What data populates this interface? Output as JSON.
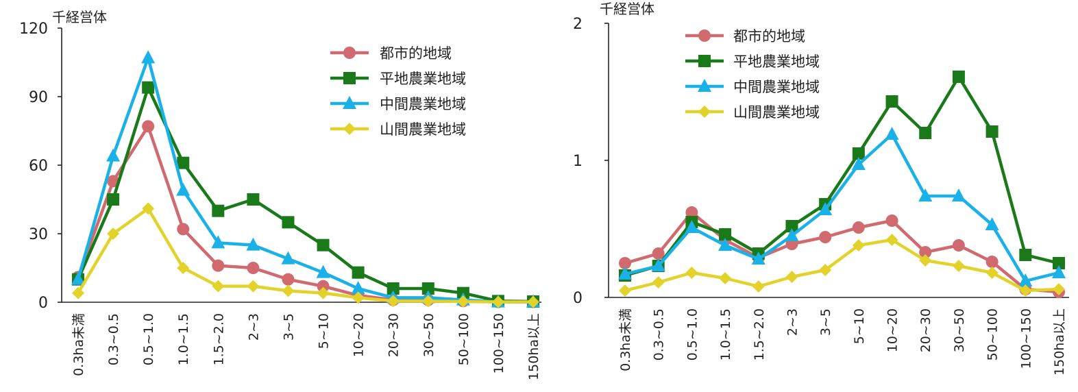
{
  "chart_data": [
    {
      "type": "line",
      "title": "",
      "unit_label": "千経営体",
      "xlabel": "",
      "ylabel": "",
      "ylim": [
        0,
        120
      ],
      "yticks": [
        0,
        30,
        60,
        90,
        120
      ],
      "legend_position": "top-right",
      "categories": [
        "0.3ha未満",
        "0.3~0.5",
        "0.5~1.0",
        "1.0~1.5",
        "1.5~2.0",
        "2~3",
        "3~5",
        "5~10",
        "10~20",
        "20~30",
        "30~50",
        "50~100",
        "100~150",
        "150ha以上"
      ],
      "series": [
        {
          "name": "都市的地域",
          "color": "#d06a6e",
          "marker": "circle",
          "values": [
            11,
            53,
            77,
            32,
            16,
            15,
            10,
            7,
            3,
            1,
            1,
            0.5,
            0.1,
            0.1
          ]
        },
        {
          "name": "平地農業地域",
          "color": "#1a7a1a",
          "marker": "square",
          "values": [
            10,
            45,
            94,
            61,
            40,
            45,
            35,
            25,
            13,
            6,
            6,
            4,
            0.5,
            0.3
          ]
        },
        {
          "name": "中間農業地域",
          "color": "#1ab0e8",
          "marker": "triangle",
          "values": [
            10,
            64,
            107,
            49,
            26,
            25,
            19,
            13,
            6,
            2,
            2,
            1,
            0.1,
            0.1
          ]
        },
        {
          "name": "山間農業地域",
          "color": "#e3d229",
          "marker": "diamond",
          "values": [
            4,
            30,
            41,
            15,
            7,
            7,
            5,
            4,
            2,
            0.5,
            0.5,
            0.3,
            0.1,
            0.1
          ]
        }
      ]
    },
    {
      "type": "line",
      "title": "",
      "unit_label": "千経営体",
      "xlabel": "",
      "ylabel": "",
      "ylim": [
        0,
        2
      ],
      "yticks": [
        0,
        1,
        2
      ],
      "legend_position": "top-left",
      "categories": [
        "0.3ha未満",
        "0.3~0.5",
        "0.5~1.0",
        "1.0~1.5",
        "1.5~2.0",
        "2~3",
        "3~5",
        "5~10",
        "10~20",
        "20~30",
        "30~50",
        "50~100",
        "100~150",
        "150ha以上"
      ],
      "series": [
        {
          "name": "都市的地域",
          "color": "#d06a6e",
          "marker": "circle",
          "values": [
            0.25,
            0.32,
            0.62,
            0.42,
            0.29,
            0.39,
            0.44,
            0.51,
            0.56,
            0.33,
            0.38,
            0.26,
            0.06,
            0.04
          ]
        },
        {
          "name": "平地農業地域",
          "color": "#1a7a1a",
          "marker": "square",
          "values": [
            0.16,
            0.23,
            0.55,
            0.46,
            0.32,
            0.52,
            0.68,
            1.05,
            1.43,
            1.2,
            1.61,
            1.21,
            0.31,
            0.25
          ]
        },
        {
          "name": "中間農業地域",
          "color": "#1ab0e8",
          "marker": "triangle",
          "values": [
            0.17,
            0.23,
            0.51,
            0.38,
            0.28,
            0.45,
            0.64,
            0.97,
            1.19,
            0.74,
            0.74,
            0.53,
            0.12,
            0.18
          ]
        },
        {
          "name": "山間農業地域",
          "color": "#e3d229",
          "marker": "diamond",
          "values": [
            0.05,
            0.11,
            0.18,
            0.14,
            0.08,
            0.15,
            0.2,
            0.38,
            0.42,
            0.27,
            0.23,
            0.18,
            0.05,
            0.06
          ]
        }
      ]
    }
  ]
}
